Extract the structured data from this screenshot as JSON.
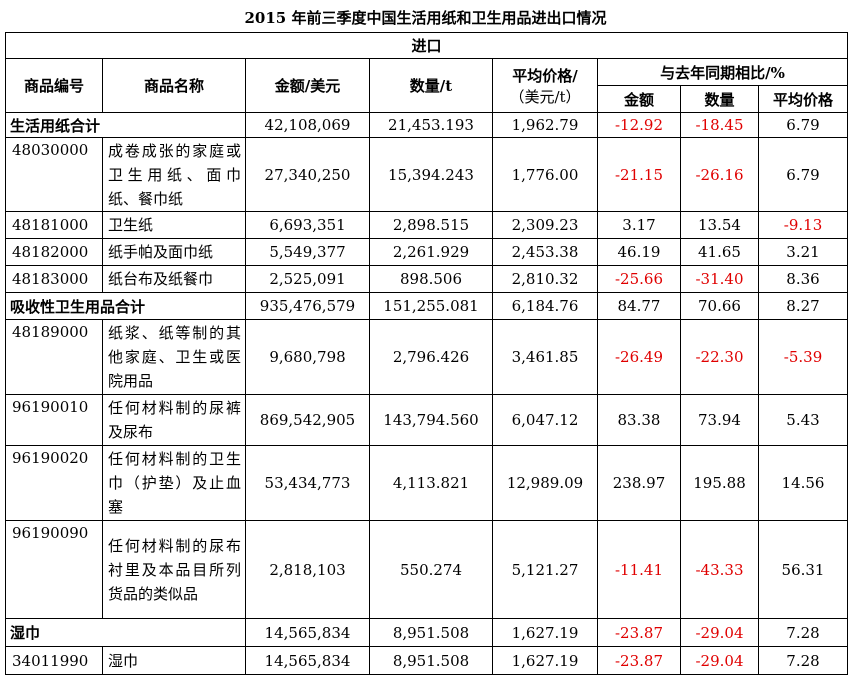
{
  "title": "2015 年前三季度中国生活用纸和卫生用品进出口情况",
  "section_label": "进口",
  "headers": {
    "code": "商品编号",
    "name": "商品名称",
    "amount": "金额/美元",
    "quantity": "数量/t",
    "avg_price": [
      "平均价格/",
      "（美元/t）"
    ],
    "yoy_group": "与去年同期相比/%",
    "yoy_amount": "金额",
    "yoy_quantity": "数量",
    "yoy_avg_price": "平均价格"
  },
  "rows": [
    {
      "type": "subtotal",
      "name": "生活用纸合计",
      "amount": "42,108,069",
      "quantity": "21,453.193",
      "avg_price": "1,962.79",
      "yoy_amount": "-12.92",
      "yoy_quantity": "-18.45",
      "yoy_avg_price": "6.79"
    },
    {
      "type": "item",
      "code": "48030000",
      "name": "成卷成张的家庭或卫生用纸、面巾纸、餐巾纸",
      "amount": "27,340,250",
      "quantity": "15,394.243",
      "avg_price": "1,776.00",
      "yoy_amount": "-21.15",
      "yoy_quantity": "-26.16",
      "yoy_avg_price": "6.79"
    },
    {
      "type": "item",
      "code": "48181000",
      "name": "卫生纸",
      "amount": "6,693,351",
      "quantity": "2,898.515",
      "avg_price": "2,309.23",
      "yoy_amount": "3.17",
      "yoy_quantity": "13.54",
      "yoy_avg_price": "-9.13"
    },
    {
      "type": "item",
      "code": "48182000",
      "name": "纸手帕及面巾纸",
      "amount": "5,549,377",
      "quantity": "2,261.929",
      "avg_price": "2,453.38",
      "yoy_amount": "46.19",
      "yoy_quantity": "41.65",
      "yoy_avg_price": "3.21"
    },
    {
      "type": "item",
      "code": "48183000",
      "name": "纸台布及纸餐巾",
      "amount": "2,525,091",
      "quantity": "898.506",
      "avg_price": "2,810.32",
      "yoy_amount": "-25.66",
      "yoy_quantity": "-31.40",
      "yoy_avg_price": "8.36"
    },
    {
      "type": "subtotal",
      "name": "吸收性卫生用品合计",
      "amount": "935,476,579",
      "quantity": "151,255.081",
      "avg_price": "6,184.76",
      "yoy_amount": "84.77",
      "yoy_quantity": "70.66",
      "yoy_avg_price": "8.27"
    },
    {
      "type": "item",
      "code": "48189000",
      "name": "纸浆、纸等制的其他家庭、卫生或医院用品",
      "amount": "9,680,798",
      "quantity": "2,796.426",
      "avg_price": "3,461.85",
      "yoy_amount": "-26.49",
      "yoy_quantity": "-22.30",
      "yoy_avg_price": "-5.39"
    },
    {
      "type": "item",
      "code": "96190010",
      "name": "任何材料制的尿裤及尿布",
      "amount": "869,542,905",
      "quantity": "143,794.560",
      "avg_price": "6,047.12",
      "yoy_amount": "83.38",
      "yoy_quantity": "73.94",
      "yoy_avg_price": "5.43"
    },
    {
      "type": "item",
      "code": "96190020",
      "name": "任何材料制的卫生巾（护垫）及止血塞",
      "amount": "53,434,773",
      "quantity": "4,113.821",
      "avg_price": "12,989.09",
      "yoy_amount": "238.97",
      "yoy_quantity": "195.88",
      "yoy_avg_price": "14.56"
    },
    {
      "type": "item",
      "code": "96190090",
      "name": "任何材料制的尿布衬里及本品目所列货品的类似品",
      "amount": "2,818,103",
      "quantity": "550.274",
      "avg_price": "5,121.27",
      "yoy_amount": "-11.41",
      "yoy_quantity": "-43.33",
      "yoy_avg_price": "56.31"
    },
    {
      "type": "subtotal",
      "name": "湿巾",
      "amount": "14,565,834",
      "quantity": "8,951.508",
      "avg_price": "1,627.19",
      "yoy_amount": "-23.87",
      "yoy_quantity": "-29.04",
      "yoy_avg_price": "7.28"
    },
    {
      "type": "item",
      "code": "34011990",
      "name": "湿巾",
      "amount": "14,565,834",
      "quantity": "8,951.508",
      "avg_price": "1,627.19",
      "yoy_amount": "-23.87",
      "yoy_quantity": "-29.04",
      "yoy_avg_price": "7.28"
    }
  ]
}
